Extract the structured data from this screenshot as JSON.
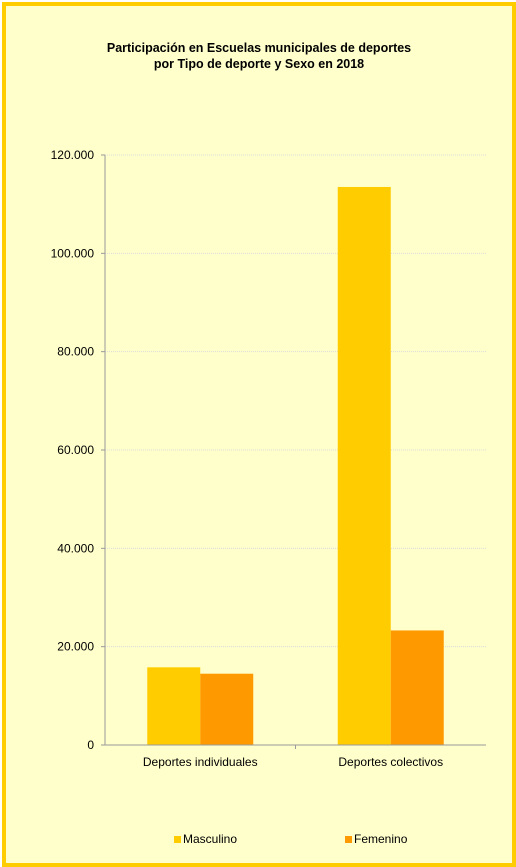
{
  "colors": {
    "frame_border": "#ffcc00",
    "background": "#ffffcc",
    "masculino": "#ffcc00",
    "femenino": "#ff9900"
  },
  "chart_data": {
    "type": "bar",
    "title": "Participación en Escuelas municipales de deportes",
    "subtitle": "por Tipo de deporte y Sexo  en 2018",
    "categories": [
      "Deportes individuales",
      "Deportes colectivos"
    ],
    "series": [
      {
        "name": "Masculino",
        "values": [
          15800,
          113500
        ],
        "color": "#ffcc00"
      },
      {
        "name": "Femenino",
        "values": [
          14500,
          23300
        ],
        "color": "#ff9900"
      }
    ],
    "ylim": [
      0,
      120000
    ],
    "yticks": [
      0,
      20000,
      40000,
      60000,
      80000,
      100000,
      120000
    ],
    "ytick_labels": [
      "0",
      "20.000",
      "40.000",
      "60.000",
      "80.000",
      "100.000",
      "120.000"
    ],
    "grid": true,
    "legend_position": "bottom"
  }
}
